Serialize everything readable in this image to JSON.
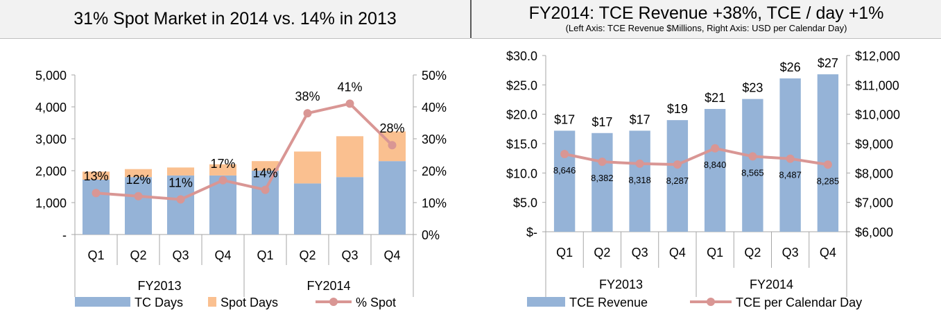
{
  "left_panel": {
    "title": "31% Spot Market in 2014 vs. 14% in 2013"
  },
  "right_panel": {
    "title": "FY2014: TCE Revenue +38%, TCE / day +1%",
    "subtitle": "(Left Axis: TCE Revenue $Millions, Right Axis: USD per Calendar Day)"
  },
  "chart_data": [
    {
      "type": "bar",
      "stacked": true,
      "categories": [
        "Q1",
        "Q2",
        "Q3",
        "Q4",
        "Q1",
        "Q2",
        "Q3",
        "Q4"
      ],
      "groups": [
        "FY2013",
        "FY2014"
      ],
      "series": [
        {
          "name": "TC Days",
          "type": "bar",
          "axis": "left",
          "color": "#95b3d7",
          "values": [
            1720,
            1800,
            1850,
            1850,
            2000,
            1600,
            1800,
            2300
          ]
        },
        {
          "name": "Spot Days",
          "type": "bar",
          "axis": "left",
          "color": "#fac090",
          "values": [
            250,
            250,
            250,
            350,
            300,
            1000,
            1280,
            930
          ]
        },
        {
          "name": "% Spot",
          "type": "line",
          "axis": "right",
          "color": "#d99694",
          "values": [
            13,
            12,
            11,
            17,
            14,
            38,
            41,
            28
          ]
        }
      ],
      "data_labels": [
        "13%",
        "12%",
        "11%",
        "17%",
        "14%",
        "38%",
        "41%",
        "28%"
      ],
      "y_left": {
        "min": 0,
        "max": 5000,
        "ticks": [
          "-",
          "1,000",
          "2,000",
          "3,000",
          "4,000",
          "5,000"
        ]
      },
      "y_right": {
        "min": 0,
        "max": 50,
        "ticks": [
          "0%",
          "10%",
          "20%",
          "30%",
          "40%",
          "50%"
        ]
      },
      "legend_position": "bottom",
      "grid": false
    },
    {
      "type": "bar",
      "categories": [
        "Q1",
        "Q2",
        "Q3",
        "Q4",
        "Q1",
        "Q2",
        "Q3",
        "Q4"
      ],
      "groups": [
        "FY2013",
        "FY2014"
      ],
      "series": [
        {
          "name": "TCE Revenue",
          "type": "bar",
          "axis": "left",
          "color": "#95b3d7",
          "values": [
            17.2,
            16.8,
            17.2,
            19.0,
            20.9,
            22.6,
            26.1,
            26.8
          ]
        },
        {
          "name": "TCE per Calendar Day",
          "type": "line",
          "axis": "right",
          "color": "#d99694",
          "values": [
            8646,
            8382,
            8318,
            8287,
            8840,
            8565,
            8487,
            8285
          ]
        }
      ],
      "bar_labels": [
        "$17",
        "$17",
        "$17",
        "$19",
        "$21",
        "$23",
        "$26",
        "$27"
      ],
      "line_labels": [
        "8,646",
        "8,382",
        "8,318",
        "8,287",
        "8,840",
        "8,565",
        "8,487",
        "8,285"
      ],
      "y_left": {
        "min": 0,
        "max": 30,
        "ticks": [
          "$-",
          "$5.0",
          "$10.0",
          "$15.0",
          "$20.0",
          "$25.0",
          "$30.0"
        ]
      },
      "y_right": {
        "min": 6000,
        "max": 12000,
        "ticks": [
          "$6,000",
          "$7,000",
          "$8,000",
          "$9,000",
          "$10,000",
          "$11,000",
          "$12,000"
        ]
      },
      "legend_position": "bottom",
      "grid": false
    }
  ]
}
